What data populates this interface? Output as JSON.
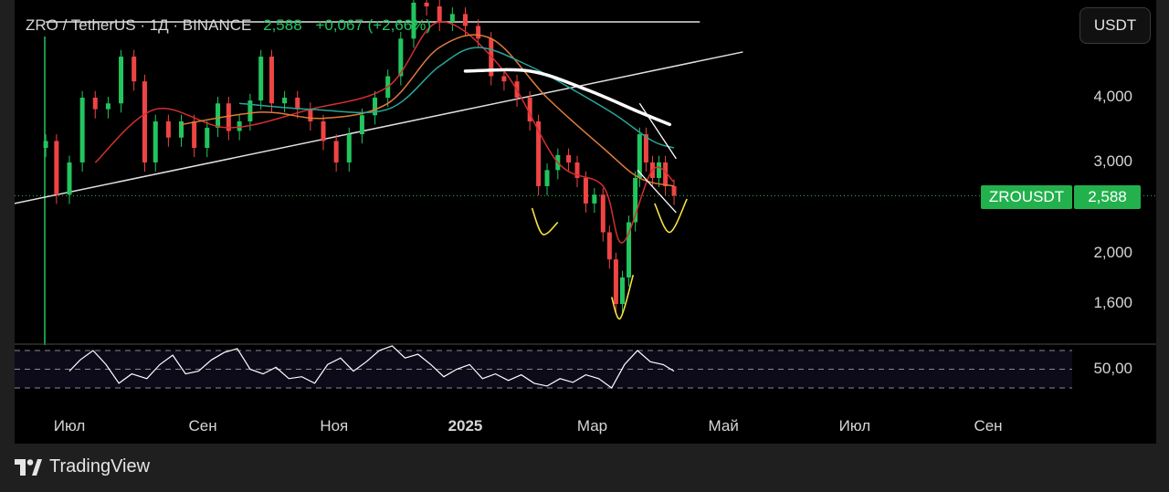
{
  "header": {
    "symbol_line": "ZRO / TetherUS · 1Д · BINANCE",
    "price": "2,588",
    "change": "+0,067 (+2,66%)"
  },
  "currency_button": "USDT",
  "price_tag": {
    "name": "ZROUSDT",
    "value": "2,588"
  },
  "brand": {
    "name": "TradingView",
    "icon": "tradingview-logo-icon"
  },
  "colors": {
    "candle_up": "#22c55e",
    "candle_down": "#ef4444",
    "ma_red": "#d32f2f",
    "ma_orange": "#e07b39",
    "ma_teal": "#26a69a",
    "trendline": "#e0e0e0",
    "annotation_yellow": "#f5e342",
    "rsi": "#ffffff",
    "price_tag": "#22b14c"
  },
  "chart_data": {
    "type": "candlestick",
    "symbol": "ZRO / TetherUS",
    "interval": "1Д",
    "exchange": "BINANCE",
    "y_scale": "log",
    "y_ticks": [
      1600,
      2000,
      3000,
      4000
    ],
    "y_tick_labels": [
      "1,600",
      "2,000",
      "3,000",
      "4,000"
    ],
    "x_tick_labels": [
      "Июл",
      "Сен",
      "Ноя",
      "2025",
      "Мар",
      "Май",
      "Июл",
      "Сен"
    ],
    "x_tick_dates": [
      "2024-07-01",
      "2024-09-01",
      "2024-11-01",
      "2025-01-01",
      "2025-03-01",
      "2025-05-01",
      "2025-07-01",
      "2025-09-01"
    ],
    "close_series": [
      [
        "2024-06-20",
        3.3
      ],
      [
        "2024-06-25",
        2.6
      ],
      [
        "2024-07-01",
        3.0
      ],
      [
        "2024-07-07",
        4.0
      ],
      [
        "2024-07-13",
        3.8
      ],
      [
        "2024-07-19",
        3.9
      ],
      [
        "2024-07-25",
        4.8
      ],
      [
        "2024-07-31",
        4.3
      ],
      [
        "2024-08-05",
        3.0
      ],
      [
        "2024-08-10",
        3.6
      ],
      [
        "2024-08-16",
        3.35
      ],
      [
        "2024-08-22",
        3.6
      ],
      [
        "2024-08-28",
        3.2
      ],
      [
        "2024-09-03",
        3.5
      ],
      [
        "2024-09-08",
        3.9
      ],
      [
        "2024-09-13",
        3.45
      ],
      [
        "2024-09-18",
        3.6
      ],
      [
        "2024-09-23",
        3.95
      ],
      [
        "2024-09-28",
        4.8
      ],
      [
        "2024-10-03",
        3.9
      ],
      [
        "2024-10-09",
        4.0
      ],
      [
        "2024-10-15",
        3.8
      ],
      [
        "2024-10-21",
        3.6
      ],
      [
        "2024-10-27",
        3.3
      ],
      [
        "2024-11-02",
        3.0
      ],
      [
        "2024-11-08",
        3.4
      ],
      [
        "2024-11-14",
        3.7
      ],
      [
        "2024-11-20",
        4.0
      ],
      [
        "2024-11-26",
        4.4
      ],
      [
        "2024-12-02",
        5.2
      ],
      [
        "2024-12-08",
        6.1
      ],
      [
        "2024-12-14",
        6.0
      ],
      [
        "2024-12-20",
        5.6
      ],
      [
        "2024-12-26",
        5.8
      ],
      [
        "2025-01-01",
        5.5
      ],
      [
        "2025-01-07",
        5.2
      ],
      [
        "2025-01-13",
        4.4
      ],
      [
        "2025-01-19",
        4.3
      ],
      [
        "2025-01-25",
        4.0
      ],
      [
        "2025-01-31",
        3.6
      ],
      [
        "2025-02-04",
        2.7
      ],
      [
        "2025-02-08",
        2.9
      ],
      [
        "2025-02-13",
        3.1
      ],
      [
        "2025-02-18",
        3.0
      ],
      [
        "2025-02-22",
        2.8
      ],
      [
        "2025-02-26",
        2.5
      ],
      [
        "2025-03-02",
        2.6
      ],
      [
        "2025-03-06",
        2.2
      ],
      [
        "2025-03-09",
        1.95
      ],
      [
        "2025-03-12",
        1.6
      ],
      [
        "2025-03-15",
        1.8
      ],
      [
        "2025-03-18",
        2.3
      ],
      [
        "2025-03-21",
        2.8
      ],
      [
        "2025-03-23",
        3.4
      ],
      [
        "2025-03-26",
        3.0
      ],
      [
        "2025-03-29",
        2.8
      ],
      [
        "2025-04-01",
        3.0
      ],
      [
        "2025-04-04",
        2.7
      ],
      [
        "2025-04-08",
        2.588
      ]
    ],
    "moving_averages": [
      {
        "color": "#d32f2f",
        "points": [
          [
            "2024-07-13",
            3.0
          ],
          [
            "2024-08-10",
            3.8
          ],
          [
            "2024-09-13",
            3.5
          ],
          [
            "2024-10-21",
            3.8
          ],
          [
            "2024-11-26",
            4.2
          ],
          [
            "2024-12-20",
            5.6
          ],
          [
            "2025-01-19",
            4.5
          ],
          [
            "2025-02-13",
            3.0
          ],
          [
            "2025-03-06",
            2.7
          ],
          [
            "2025-03-15",
            2.1
          ],
          [
            "2025-03-29",
            2.9
          ],
          [
            "2025-04-08",
            2.75
          ]
        ]
      },
      {
        "color": "#e07b39",
        "points": [
          [
            "2024-08-22",
            3.55
          ],
          [
            "2024-09-28",
            3.75
          ],
          [
            "2024-10-27",
            3.65
          ],
          [
            "2024-11-26",
            3.9
          ],
          [
            "2024-12-20",
            5.0
          ],
          [
            "2025-01-13",
            5.2
          ],
          [
            "2025-02-08",
            4.0
          ],
          [
            "2025-03-06",
            3.2
          ],
          [
            "2025-03-23",
            2.8
          ],
          [
            "2025-04-08",
            2.7
          ]
        ]
      },
      {
        "color": "#26a69a",
        "points": [
          [
            "2024-09-18",
            3.9
          ],
          [
            "2024-10-21",
            3.8
          ],
          [
            "2024-11-26",
            3.8
          ],
          [
            "2024-12-20",
            4.6
          ],
          [
            "2025-01-07",
            5.0
          ],
          [
            "2025-01-31",
            4.6
          ],
          [
            "2025-02-22",
            4.1
          ],
          [
            "2025-03-12",
            3.7
          ],
          [
            "2025-03-29",
            3.3
          ],
          [
            "2025-04-08",
            3.2
          ]
        ]
      }
    ],
    "drawings": {
      "horizontal_level": {
        "price": 5.6,
        "from": "2024-06-20",
        "to": "2025-04-20"
      },
      "ascending_trendline": {
        "from": [
          "2024-06-20",
          2.5
        ],
        "to": [
          "2025-05-10",
          4.9
        ]
      },
      "white_arc": [
        [
          "2025-01-01",
          4.5
        ],
        [
          "2025-01-31",
          4.5
        ],
        [
          "2025-02-26",
          4.15
        ],
        [
          "2025-03-23",
          3.75
        ],
        [
          "2025-04-06",
          3.55
        ]
      ],
      "falling_channel": [
        {
          "from": [
            "2025-03-23",
            3.9
          ],
          "to": [
            "2025-04-09",
            3.05
          ]
        },
        {
          "from": [
            "2025-03-22",
            2.9
          ],
          "to": [
            "2025-04-09",
            2.4
          ]
        }
      ],
      "yellow_arcs": [
        {
          "points": [
            [
              "2025-02-01",
              2.45
            ],
            [
              "2025-02-06",
              2.18
            ],
            [
              "2025-02-13",
              2.3
            ]
          ]
        },
        {
          "points": [
            [
              "2025-03-10",
              1.65
            ],
            [
              "2025-03-14",
              1.5
            ],
            [
              "2025-03-20",
              1.82
            ]
          ]
        },
        {
          "points": [
            [
              "2025-03-30",
              2.5
            ],
            [
              "2025-04-06",
              2.2
            ],
            [
              "2025-04-14",
              2.55
            ]
          ]
        }
      ]
    },
    "rsi_panel": {
      "tick_labels": [
        "50,00"
      ],
      "dashed_levels": [
        70,
        50,
        30
      ],
      "values": [
        [
          "2024-07-01",
          48
        ],
        [
          "2024-07-06",
          60
        ],
        [
          "2024-07-12",
          70
        ],
        [
          "2024-07-18",
          55
        ],
        [
          "2024-07-24",
          35
        ],
        [
          "2024-07-30",
          45
        ],
        [
          "2024-08-06",
          40
        ],
        [
          "2024-08-12",
          55
        ],
        [
          "2024-08-18",
          65
        ],
        [
          "2024-08-24",
          45
        ],
        [
          "2024-08-30",
          48
        ],
        [
          "2024-09-05",
          60
        ],
        [
          "2024-09-11",
          68
        ],
        [
          "2024-09-17",
          72
        ],
        [
          "2024-09-23",
          50
        ],
        [
          "2024-09-29",
          45
        ],
        [
          "2024-10-05",
          52
        ],
        [
          "2024-10-11",
          40
        ],
        [
          "2024-10-17",
          42
        ],
        [
          "2024-10-23",
          35
        ],
        [
          "2024-10-29",
          55
        ],
        [
          "2024-11-04",
          62
        ],
        [
          "2024-11-10",
          48
        ],
        [
          "2024-11-16",
          58
        ],
        [
          "2024-11-22",
          70
        ],
        [
          "2024-11-28",
          75
        ],
        [
          "2024-12-04",
          62
        ],
        [
          "2024-12-10",
          66
        ],
        [
          "2024-12-16",
          55
        ],
        [
          "2024-12-22",
          42
        ],
        [
          "2024-12-28",
          50
        ],
        [
          "2025-01-03",
          55
        ],
        [
          "2025-01-09",
          40
        ],
        [
          "2025-01-15",
          45
        ],
        [
          "2025-01-21",
          38
        ],
        [
          "2025-01-27",
          44
        ],
        [
          "2025-02-02",
          35
        ],
        [
          "2025-02-08",
          32
        ],
        [
          "2025-02-14",
          40
        ],
        [
          "2025-02-20",
          36
        ],
        [
          "2025-02-26",
          44
        ],
        [
          "2025-03-04",
          40
        ],
        [
          "2025-03-10",
          30
        ],
        [
          "2025-03-16",
          55
        ],
        [
          "2025-03-22",
          70
        ],
        [
          "2025-03-28",
          58
        ],
        [
          "2025-04-03",
          55
        ],
        [
          "2025-04-08",
          48
        ]
      ]
    }
  }
}
